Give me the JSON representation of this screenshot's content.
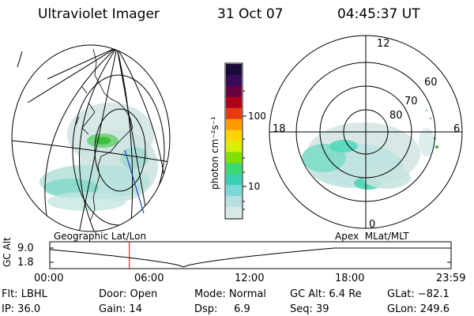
{
  "header": {
    "instrument": "Ultraviolet Imager",
    "date": "31 Oct 07",
    "time": "04:45:37 UT"
  },
  "geo_panel": {
    "label": "Geographic Lat/Lon"
  },
  "apex_panel": {
    "label": "Apex  MLat/MLT",
    "mlt_labels": [
      "12",
      "18",
      "6",
      "0"
    ],
    "lat_labels": [
      "60",
      "70",
      "80"
    ]
  },
  "colorbar": {
    "unit_label": "photon cm⁻²s⁻¹",
    "tick_labels": [
      "100",
      "10"
    ],
    "colors": [
      "#1a0a3a",
      "#3a0a5a",
      "#6a0040",
      "#b00018",
      "#e83a10",
      "#ff9a00",
      "#ffd400",
      "#d8f000",
      "#80e000",
      "#3cd870",
      "#38d0b0",
      "#7cd8d8",
      "#b8e0e0",
      "#d8e8e8"
    ]
  },
  "altitude_plot": {
    "axis_label": "GC Alt",
    "y_ticks": [
      "9.0",
      "1.8"
    ],
    "x_ticks": [
      "00:00",
      "06:00",
      "12:00",
      "18:00",
      "23:59"
    ],
    "current_time_marker_hours": 4.76,
    "marker_color": "#cc0000"
  },
  "status": {
    "row1": {
      "filter": "Flt: LBHL",
      "door": "Door: Open",
      "mode": "Mode: Normal",
      "gc_alt": "GC Alt: 6.4 Re",
      "glat": "GLat: −82.1"
    },
    "row2": {
      "ip": "IP: 36.0",
      "gain": "Gain: 14",
      "dsp": "Dsp:     6.9",
      "seq": "Seq: 39",
      "glon": "GLon: 249.6"
    }
  }
}
